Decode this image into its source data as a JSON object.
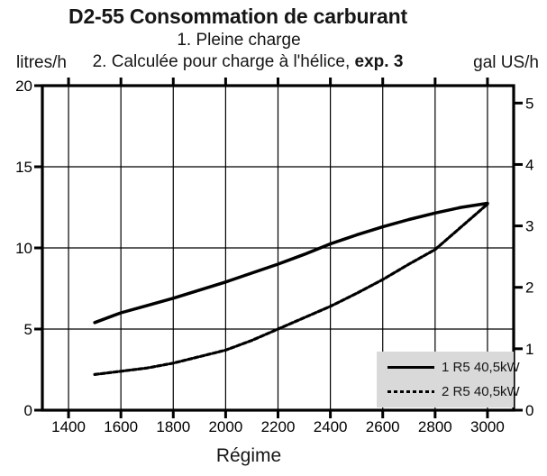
{
  "header": {
    "subtitle2_prefix": "2. Calculée pour charge à l'hélice, ",
    "subtitle2_bold": "exp. 3"
  },
  "colors": {
    "line": "#000000",
    "text": "#161616",
    "legend_background": "#d9d9d9",
    "background": "#ffffff"
  },
  "legend": {
    "entries": [
      {
        "label": "1 R5 40,5kW",
        "style": "solid"
      },
      {
        "label": "2 R5 40,5kW",
        "style": "dashed"
      }
    ]
  },
  "chart_data": {
    "type": "line",
    "title": "D2-55 Consommation de carburant",
    "subtitle1": "1. Pleine charge",
    "subtitle2": "2. Calculée pour charge à l'hélice, exp. 3",
    "xlabel": "Régime",
    "ylabel_left": "litres/h",
    "ylabel_right": "gal US/h",
    "xlim": [
      1300,
      3100
    ],
    "ylim_left": [
      0,
      20
    ],
    "ylim_right": [
      0,
      5.28
    ],
    "x_ticks": [
      1400,
      1600,
      1800,
      2000,
      2200,
      2400,
      2600,
      2800,
      3000
    ],
    "y_ticks_left": [
      0,
      5,
      10,
      15,
      20
    ],
    "y_ticks_right": [
      0,
      1,
      2,
      3,
      4,
      5
    ],
    "litres_per_gal": 3.7854,
    "grid": true,
    "legend_position": "lower right",
    "series": [
      {
        "name": "1 R5 40,5kW",
        "style": "solid",
        "x": [
          1500,
          1600,
          1700,
          1800,
          1900,
          2000,
          2100,
          2200,
          2300,
          2400,
          2500,
          2600,
          2700,
          2800,
          2900,
          3000
        ],
        "y": [
          5.4,
          6.0,
          6.45,
          6.9,
          7.4,
          7.9,
          8.45,
          9.0,
          9.6,
          10.25,
          10.8,
          11.3,
          11.75,
          12.15,
          12.5,
          12.75
        ]
      },
      {
        "name": "2 R5 40,5kW",
        "style": "dashed",
        "x": [
          1500,
          1600,
          1700,
          1800,
          1900,
          2000,
          2100,
          2200,
          2300,
          2400,
          2500,
          2600,
          2700,
          2800,
          2900,
          3000
        ],
        "y": [
          2.2,
          2.4,
          2.6,
          2.9,
          3.3,
          3.7,
          4.3,
          5.0,
          5.7,
          6.4,
          7.2,
          8.05,
          9.0,
          9.9,
          11.3,
          12.7
        ]
      }
    ]
  }
}
